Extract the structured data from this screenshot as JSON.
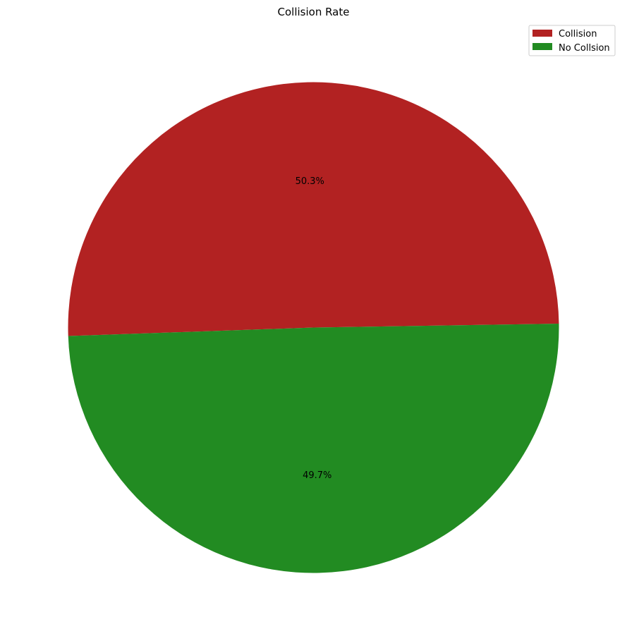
{
  "chart_data": {
    "type": "pie",
    "title": "Collision Rate",
    "labels": [
      "Collision",
      "No Collsion"
    ],
    "values": [
      50.3,
      49.7
    ],
    "value_labels": [
      "50.3%",
      "49.7%"
    ],
    "colors": [
      "#b22222",
      "#228b22"
    ],
    "start_angle_deg": 0.9,
    "legend_position": "top-right"
  }
}
